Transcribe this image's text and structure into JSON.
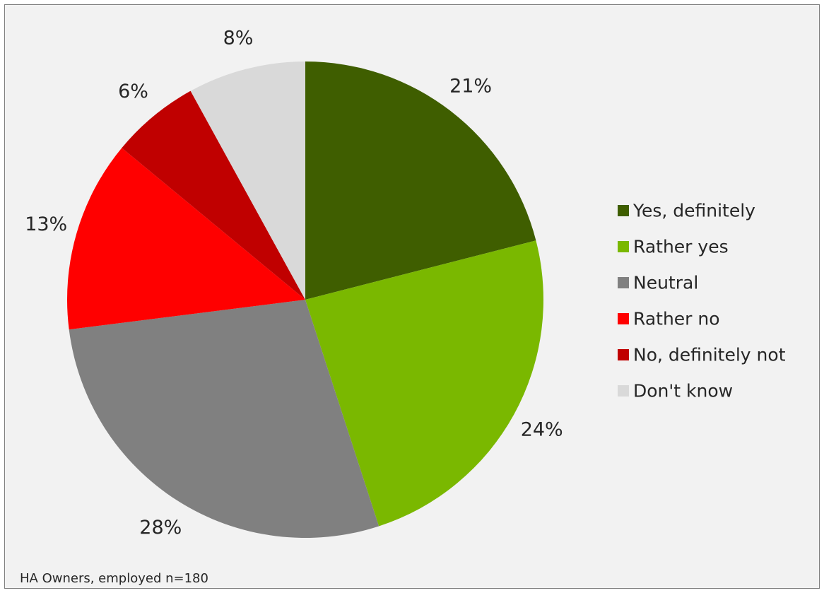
{
  "chart_data": {
    "type": "pie",
    "title": "",
    "slices": [
      {
        "label": "Yes, definitely",
        "value": 21,
        "value_label": "21%",
        "color": "#3f5e00"
      },
      {
        "label": "Rather yes",
        "value": 24,
        "value_label": "24%",
        "color": "#7ab800"
      },
      {
        "label": "Neutral",
        "value": 28,
        "value_label": "28%",
        "color": "#808080"
      },
      {
        "label": "Rather no",
        "value": 13,
        "value_label": "13%",
        "color": "#ff0000"
      },
      {
        "label": "No, definitely not",
        "value": 6,
        "value_label": "6%",
        "color": "#c00000"
      },
      {
        "label": "Don't know",
        "value": 8,
        "value_label": "8%",
        "color": "#d9d9d9"
      }
    ],
    "legend_position": "right",
    "start_angle": "12 o'clock",
    "direction": "clockwise"
  },
  "footnote": "HA Owners, employed n=180"
}
